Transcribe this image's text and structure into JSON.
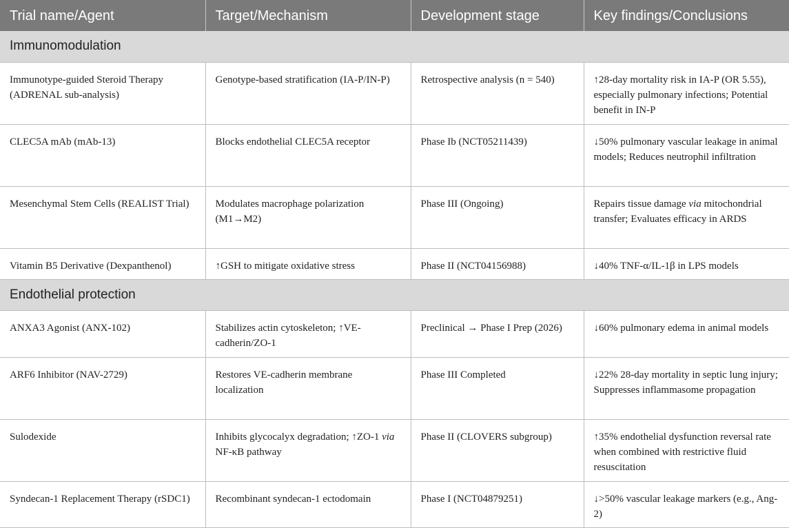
{
  "headers": [
    "Trial name/Agent",
    "Target/Mechanism",
    "Development stage",
    "Key findings/Conclusions"
  ],
  "sections": [
    {
      "title": "Immunomodulation",
      "rows": [
        {
          "agent": "Immunotype-guided Steroid Therapy (ADRENAL sub-analysis)",
          "mechanism": "Genotype-based stratification (IA-P/IN-P)",
          "stage": "Retrospective analysis (n = 540)",
          "findings": "↑28-day mortality risk in IA-P (OR 5.55), especially pulmonary infections; Potential benefit in IN-P"
        },
        {
          "agent": "CLEC5A mAb (mAb-13)",
          "mechanism": "Blocks endothelial CLEC5A receptor",
          "stage": "Phase Ib (NCT05211439)",
          "findings": "↓50% pulmonary vascular leakage in animal models; Reduces neutrophil infiltration"
        },
        {
          "agent": "Mesenchymal Stem Cells (REALIST Trial)",
          "mechanism": "Modulates macrophage polarization (M1→M2)",
          "stage": "Phase III (Ongoing)",
          "findings_pre": "Repairs tissue damage ",
          "findings_em": "via",
          "findings_post": " mitochondrial transfer; Evaluates efficacy in ARDS"
        },
        {
          "agent": "Vitamin B5 Derivative (Dexpanthenol)",
          "mechanism": "↑GSH to mitigate oxidative stress",
          "stage": "Phase II (NCT04156988)",
          "findings": "↓40% TNF-α/IL-1β in LPS models"
        }
      ]
    },
    {
      "title": "Endothelial protection",
      "rows": [
        {
          "agent": "ANXA3 Agonist (ANX-102)",
          "mechanism": "Stabilizes actin cytoskeleton; ↑VE-cadherin/ZO-1",
          "stage": "Preclinical → Phase I Prep (2026)",
          "findings": "↓60% pulmonary edema in animal models"
        },
        {
          "agent": "ARF6 Inhibitor (NAV-2729)",
          "mechanism": "Restores VE-cadherin membrane localization",
          "stage": "Phase III Completed",
          "findings": "↓22% 28-day mortality in septic lung injury; Suppresses inflammasome propagation"
        },
        {
          "agent": "Sulodexide",
          "mechanism_pre": "Inhibits glycocalyx degradation; ↑ZO-1 ",
          "mechanism_em": "via",
          "mechanism_post": " NF-κB pathway",
          "stage": "Phase II (CLOVERS subgroup)",
          "findings": "↑35% endothelial dysfunction reversal rate when combined with restrictive fluid resuscitation"
        },
        {
          "agent": "Syndecan-1 Replacement Therapy (rSDC1)",
          "mechanism": "Recombinant syndecan-1 ectodomain",
          "stage": "Phase I (NCT04879251)",
          "findings": "↓>50% vascular leakage markers (e.g., Ang-2)"
        }
      ]
    }
  ]
}
